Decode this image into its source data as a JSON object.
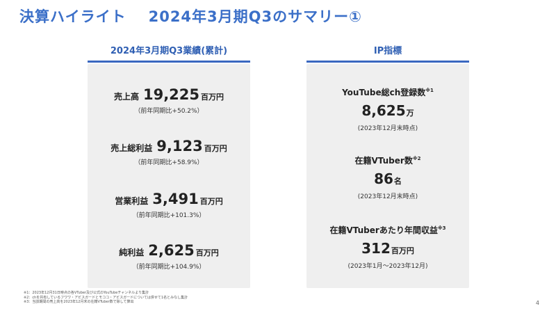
{
  "title": {
    "part1": "決算ハイライト",
    "part2": "2024年3月期Q3のサマリー①"
  },
  "left": {
    "header": "2024年3月期Q3業績(累計)",
    "metrics": [
      {
        "label": "売上高",
        "value": "19,225",
        "unit": "百万円",
        "sub": "（前年同期比+50.2%）"
      },
      {
        "label": "売上総利益",
        "value": "9,123",
        "unit": "百万円",
        "sub": "（前年同期比+58.9%）"
      },
      {
        "label": "営業利益",
        "value": "3,491",
        "unit": "百万円",
        "sub": "（前年同期比+101.3%）"
      },
      {
        "label": "純利益",
        "value": "2,625",
        "unit": "百万円",
        "sub": "（前年同期比+104.9%）"
      }
    ]
  },
  "right": {
    "header": "IP指標",
    "metrics": [
      {
        "label": "YouTube総ch登録数",
        "note": "※1",
        "value": "8,625",
        "unit": "万",
        "sub": "(2023年12月末時点)"
      },
      {
        "label": "在籍VTuber数",
        "note": "※2",
        "value": "86",
        "unit": "名",
        "sub": "(2023年12月末時点)"
      },
      {
        "label": "在籍VTuberあたり年間収益",
        "note": "※3",
        "value": "312",
        "unit": "百万円",
        "sub": "(2023年1月～2023年12月)"
      }
    ]
  },
  "notes": [
    "※1：2023年12月31日時点の各VTuber及び公式のYouTubeチャンネルより集計",
    "※2：chを共有しているフワワ・アビスガードとモココ・アビスガードについては併せて1名とみなし集計",
    "※3：当該期間の売上高を2023年12月末の在籍VTuber数で除して算出"
  ],
  "page_number": "4"
}
